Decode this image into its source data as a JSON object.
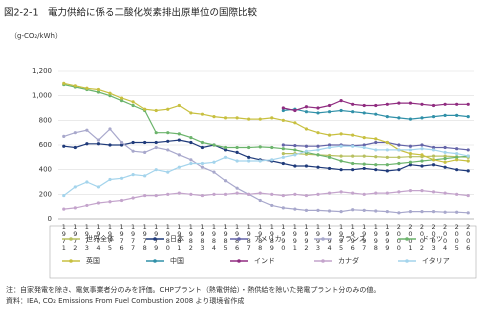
{
  "chart_data": {
    "type": "line",
    "title": "図2-2-1　電力供給に係る二酸化炭素排出原単位の国際比較",
    "y_label": "（g-CO₂/kWh）",
    "categories": [
      "1971",
      "1972",
      "1973",
      "1974",
      "1975",
      "1976",
      "1977",
      "1978",
      "1979",
      "1980",
      "1981",
      "1982",
      "1983",
      "1984",
      "1985",
      "1986",
      "1987",
      "1988",
      "1989",
      "1990",
      "1991",
      "1992",
      "1993",
      "1994",
      "1995",
      "1996",
      "1997",
      "1998",
      "1999",
      "2000",
      "2001",
      "2002",
      "2003",
      "2004",
      "2005",
      "2006"
    ],
    "ylim": [
      0,
      1200
    ],
    "yticks": [
      0,
      200,
      400,
      600,
      800,
      {
        "value": 1000,
        "label": "1,000"
      },
      {
        "value": 1200,
        "label": "1,200"
      }
    ],
    "grid": true,
    "series": [
      {
        "name": "世界全体",
        "color": "#b8c060",
        "values": [
          null,
          null,
          null,
          null,
          null,
          null,
          null,
          null,
          null,
          null,
          null,
          null,
          null,
          null,
          null,
          null,
          null,
          null,
          null,
          530,
          530,
          525,
          520,
          515,
          510,
          510,
          510,
          505,
          500,
          500,
          505,
          505,
          510,
          510,
          505,
          500
        ]
      },
      {
        "name": "日本",
        "color": "#1f3a7a",
        "values": [
          590,
          580,
          610,
          610,
          600,
          600,
          620,
          620,
          620,
          630,
          640,
          620,
          580,
          600,
          560,
          540,
          500,
          480,
          470,
          450,
          430,
          430,
          420,
          410,
          400,
          400,
          410,
          400,
          390,
          400,
          440,
          430,
          440,
          420,
          400,
          390
        ]
      },
      {
        "name": "アメリカ",
        "color": "#6464a8",
        "values": [
          null,
          null,
          null,
          null,
          null,
          null,
          null,
          null,
          null,
          null,
          null,
          null,
          null,
          null,
          null,
          null,
          null,
          null,
          null,
          600,
          595,
          590,
          590,
          600,
          600,
          595,
          600,
          620,
          620,
          600,
          590,
          600,
          580,
          580,
          570,
          560
        ]
      },
      {
        "name": "フランス",
        "color": "#a8a8cc",
        "values": [
          670,
          700,
          720,
          640,
          730,
          620,
          550,
          540,
          580,
          560,
          520,
          480,
          420,
          380,
          310,
          250,
          200,
          150,
          110,
          90,
          80,
          70,
          70,
          65,
          60,
          75,
          70,
          65,
          60,
          50,
          60,
          60,
          60,
          55,
          55,
          50
        ]
      },
      {
        "name": "ドイツ",
        "color": "#6cb46c",
        "values": [
          1090,
          1070,
          1050,
          1030,
          1000,
          960,
          920,
          880,
          700,
          700,
          690,
          660,
          620,
          600,
          580,
          580,
          580,
          585,
          580,
          570,
          560,
          540,
          520,
          500,
          470,
          450,
          445,
          440,
          440,
          450,
          460,
          470,
          480,
          490,
          500,
          510
        ]
      },
      {
        "name": "英国",
        "color": "#c8c040",
        "values": [
          1100,
          1080,
          1060,
          1050,
          1020,
          980,
          950,
          890,
          880,
          890,
          920,
          860,
          850,
          830,
          820,
          820,
          810,
          810,
          820,
          800,
          780,
          730,
          700,
          680,
          690,
          680,
          660,
          650,
          620,
          560,
          530,
          520,
          480,
          460,
          480,
          470
        ]
      },
      {
        "name": "中国",
        "color": "#3090a8",
        "values": [
          null,
          null,
          null,
          null,
          null,
          null,
          null,
          null,
          null,
          null,
          null,
          null,
          null,
          null,
          null,
          null,
          null,
          null,
          null,
          880,
          890,
          870,
          860,
          870,
          880,
          870,
          860,
          850,
          830,
          820,
          810,
          820,
          830,
          840,
          840,
          830
        ]
      },
      {
        "name": "インド",
        "color": "#902c80",
        "values": [
          null,
          null,
          null,
          null,
          null,
          null,
          null,
          null,
          null,
          null,
          null,
          null,
          null,
          null,
          null,
          null,
          null,
          null,
          null,
          900,
          880,
          910,
          900,
          920,
          960,
          930,
          920,
          920,
          930,
          940,
          940,
          930,
          920,
          930,
          930,
          930
        ]
      },
      {
        "name": "カナダ",
        "color": "#c4a4cc",
        "values": [
          80,
          90,
          110,
          130,
          140,
          150,
          170,
          190,
          190,
          200,
          210,
          200,
          190,
          200,
          200,
          210,
          200,
          210,
          200,
          190,
          200,
          190,
          200,
          210,
          220,
          210,
          200,
          210,
          210,
          220,
          230,
          230,
          220,
          210,
          200,
          190
        ]
      },
      {
        "name": "イタリア",
        "color": "#a4d4ec",
        "values": [
          190,
          260,
          300,
          260,
          320,
          330,
          360,
          350,
          400,
          380,
          420,
          450,
          450,
          460,
          500,
          470,
          470,
          470,
          480,
          500,
          520,
          550,
          560,
          580,
          590,
          590,
          580,
          560,
          560,
          560,
          560,
          570,
          560,
          540,
          530,
          510
        ]
      }
    ],
    "notes": [
      "注：自家発電を除き、電気事業者分のみを評価。CHPプラント（熱電併給）・熱供給を除いた発電プラント分のみの値。",
      "資料：IEA, CO₂ Emissions From Fuel Combustion 2008 より環境省作成"
    ]
  }
}
